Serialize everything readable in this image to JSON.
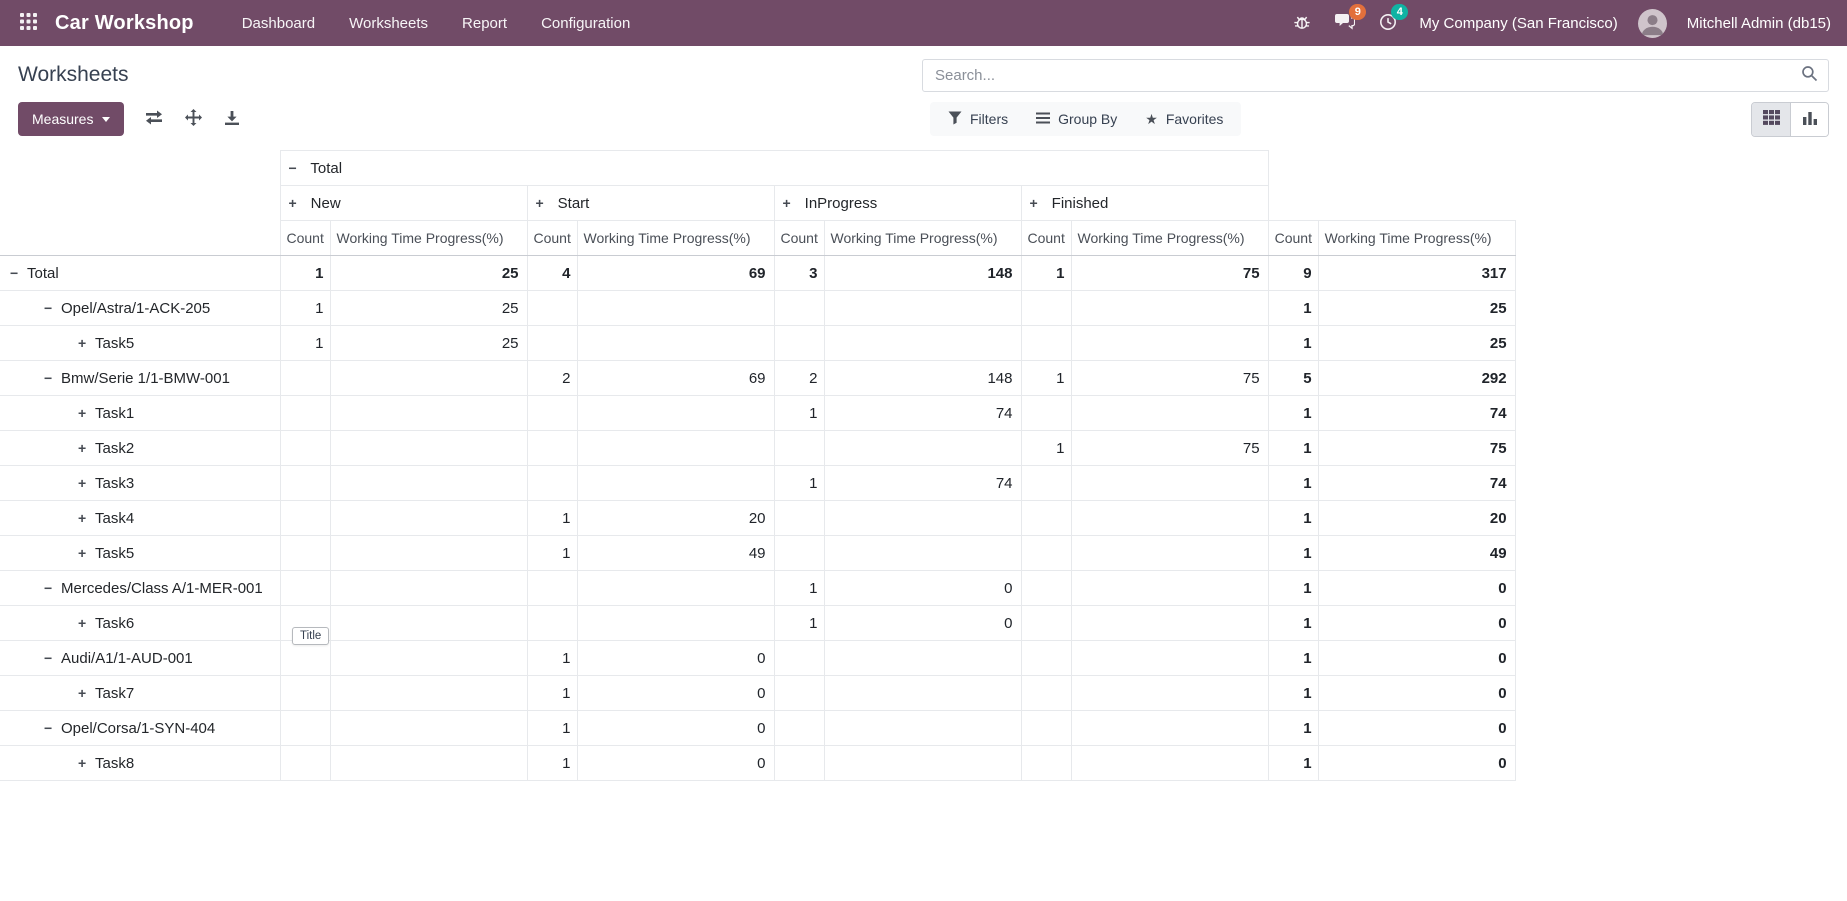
{
  "topbar": {
    "app_title": "Car Workshop",
    "menu": [
      "Dashboard",
      "Worksheets",
      "Report",
      "Configuration"
    ],
    "badges": {
      "messages": "9",
      "activities": "4"
    },
    "company": "My Company (San Francisco)",
    "user": "Mitchell Admin (db15)"
  },
  "colors": {
    "topbar_bg": "#714B67",
    "primary_button": "#714B67",
    "messages_badge": "#e2703c",
    "activities_badge": "#10b3a3",
    "active_view_bg": "#e4e6ea"
  },
  "icons": {
    "apps": "grid-3x3",
    "bug": "debug-bug",
    "messages": "chat-bubbles",
    "activities": "clock",
    "search": "magnifier",
    "flip_axis": "exchange-arrows",
    "expand_all": "move-arrows",
    "download": "download-tray",
    "filters": "funnel",
    "group_by": "bars",
    "favorites": "star",
    "pivot_view": "table-grid",
    "graph_view": "bar-chart"
  },
  "page": {
    "title": "Worksheets"
  },
  "search": {
    "placeholder": "Search..."
  },
  "controls": {
    "measures_label": "Measures",
    "filters_label": "Filters",
    "groupby_label": "Group By",
    "favorites_label": "Favorites"
  },
  "tooltip": {
    "text": "Title"
  },
  "pivot": {
    "col_group": {
      "sign": "−",
      "label": "Total"
    },
    "sub_groups": [
      {
        "sign": "+",
        "label": "New"
      },
      {
        "sign": "+",
        "label": "Start"
      },
      {
        "sign": "+",
        "label": "InProgress"
      },
      {
        "sign": "+",
        "label": "Finished"
      }
    ],
    "measures": [
      "Count",
      "Working Time Progress(%)"
    ],
    "rows": [
      {
        "label": "Total",
        "sign": "−",
        "level": 0,
        "bold": true,
        "values": [
          "1",
          "25",
          "4",
          "69",
          "3",
          "148",
          "1",
          "75",
          "9",
          "317"
        ]
      },
      {
        "label": "Opel/Astra/1-ACK-205",
        "sign": "−",
        "level": 1,
        "values": [
          "1",
          "25",
          "",
          "",
          "",
          "",
          "",
          "",
          "1",
          "25"
        ]
      },
      {
        "label": "Task5",
        "sign": "+",
        "level": 2,
        "values": [
          "1",
          "25",
          "",
          "",
          "",
          "",
          "",
          "",
          "1",
          "25"
        ]
      },
      {
        "label": "Bmw/Serie 1/1-BMW-001",
        "sign": "−",
        "level": 1,
        "values": [
          "",
          "",
          "2",
          "69",
          "2",
          "148",
          "1",
          "75",
          "5",
          "292"
        ]
      },
      {
        "label": "Task1",
        "sign": "+",
        "level": 2,
        "values": [
          "",
          "",
          "",
          "",
          "1",
          "74",
          "",
          "",
          "1",
          "74"
        ]
      },
      {
        "label": "Task2",
        "sign": "+",
        "level": 2,
        "values": [
          "",
          "",
          "",
          "",
          "",
          "",
          "1",
          "75",
          "1",
          "75"
        ]
      },
      {
        "label": "Task3",
        "sign": "+",
        "level": 2,
        "values": [
          "",
          "",
          "",
          "",
          "1",
          "74",
          "",
          "",
          "1",
          "74"
        ]
      },
      {
        "label": "Task4",
        "sign": "+",
        "level": 2,
        "values": [
          "",
          "",
          "1",
          "20",
          "",
          "",
          "",
          "",
          "1",
          "20"
        ]
      },
      {
        "label": "Task5",
        "sign": "+",
        "level": 2,
        "values": [
          "",
          "",
          "1",
          "49",
          "",
          "",
          "",
          "",
          "1",
          "49"
        ]
      },
      {
        "label": "Mercedes/Class A/1-MER-001",
        "sign": "−",
        "level": 1,
        "values": [
          "",
          "",
          "",
          "",
          "1",
          "0",
          "",
          "",
          "1",
          "0"
        ]
      },
      {
        "label": "Task6",
        "sign": "+",
        "level": 2,
        "values": [
          "",
          "",
          "",
          "",
          "1",
          "0",
          "",
          "",
          "1",
          "0"
        ]
      },
      {
        "label": "Audi/A1/1-AUD-001",
        "sign": "−",
        "level": 1,
        "values": [
          "",
          "",
          "1",
          "0",
          "",
          "",
          "",
          "",
          "1",
          "0"
        ]
      },
      {
        "label": "Task7",
        "sign": "+",
        "level": 2,
        "values": [
          "",
          "",
          "1",
          "0",
          "",
          "",
          "",
          "",
          "1",
          "0"
        ]
      },
      {
        "label": "Opel/Corsa/1-SYN-404",
        "sign": "−",
        "level": 1,
        "values": [
          "",
          "",
          "1",
          "0",
          "",
          "",
          "",
          "",
          "1",
          "0"
        ]
      },
      {
        "label": "Task8",
        "sign": "+",
        "level": 2,
        "values": [
          "",
          "",
          "1",
          "0",
          "",
          "",
          "",
          "",
          "1",
          "0"
        ]
      }
    ]
  }
}
